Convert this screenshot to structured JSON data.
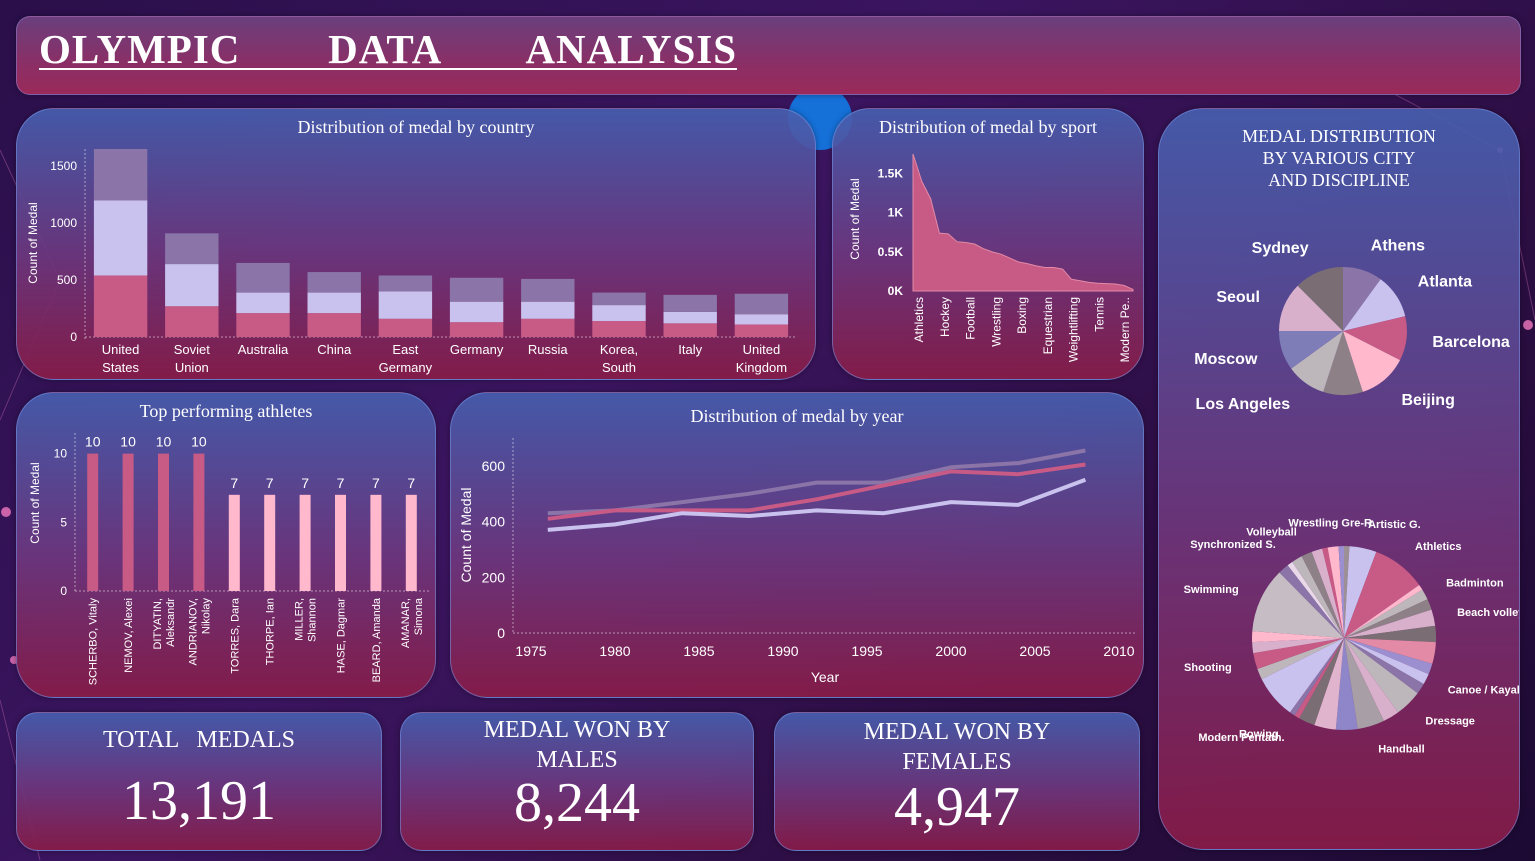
{
  "header": {
    "title": "OLYMPIC   DATA   ANALYSIS"
  },
  "kpis": {
    "total": {
      "label": "TOTAL   MEDALS",
      "value": "13,191"
    },
    "males": {
      "label": "MEDAL WON BY\nMALES",
      "value": "8,244"
    },
    "females": {
      "label": "MEDAL WON BY\nFEMALES",
      "value": "4,947"
    }
  },
  "colors": {
    "light": "#c9c2ee",
    "pink": "#c85a86",
    "mauve": "#8a74a8",
    "bright_pink": "#ffb8cc",
    "grey": "#bdb7bc"
  },
  "chart_data": [
    {
      "id": "country",
      "type": "bar",
      "stacked": true,
      "title": "Distribution of medal by country",
      "ylabel": "Count of Medal",
      "ylim": [
        0,
        1650
      ],
      "yticks": [
        0,
        500,
        1000,
        1500
      ],
      "ytick_labels": [
        "0",
        "500",
        "1000",
        "1500"
      ],
      "categories": [
        "United\nStates",
        "Soviet\nUnion",
        "Australia",
        "China",
        "East\nGermany",
        "Germany",
        "Russia",
        "Korea,\nSouth",
        "Italy",
        "United\nKingdom"
      ],
      "series": [
        {
          "color": "#c85a86",
          "values": [
            540,
            270,
            210,
            210,
            160,
            130,
            160,
            140,
            120,
            110
          ]
        },
        {
          "color": "#c9c2ee",
          "values": [
            660,
            370,
            180,
            180,
            240,
            180,
            150,
            140,
            100,
            90
          ]
        },
        {
          "color": "#8a74a8",
          "values": [
            450,
            270,
            260,
            180,
            140,
            210,
            200,
            110,
            150,
            180
          ]
        }
      ]
    },
    {
      "id": "sport",
      "type": "area",
      "title": "Distribution of medal by sport",
      "ylabel": "Count of Medal",
      "ylim": [
        0,
        1750
      ],
      "yticks": [
        0,
        500,
        1000,
        1500
      ],
      "ytick_labels": [
        "0K",
        "0.5K",
        "1K",
        "1.5K"
      ],
      "labeled_categories": [
        "Athletics",
        "Hockey",
        "Football",
        "Wrestling",
        "Boxing",
        "Equestrian",
        "Weightlifting",
        "Tennis",
        "Modern Pe.."
      ],
      "values": [
        1750,
        1400,
        1180,
        740,
        730,
        630,
        620,
        600,
        540,
        500,
        470,
        420,
        370,
        350,
        320,
        300,
        300,
        280,
        150,
        130,
        110,
        100,
        95,
        90,
        70,
        20
      ]
    },
    {
      "id": "athletes",
      "type": "bar",
      "title": "Top performing athletes",
      "ylabel": "Count of Medal",
      "ylim": [
        0,
        11.5
      ],
      "yticks": [
        0,
        5,
        10
      ],
      "ytick_labels": [
        "0",
        "5",
        "10"
      ],
      "categories": [
        "SCHERBO, Vitaly",
        "NEMOV, Alexei",
        "DITYATIN,\nAleksandr",
        "ANDRIANOV,\nNikolay",
        "TORRES, Dara",
        "THORPE, Ian",
        "MILLER,\nShannon",
        "HASE, Dagmar",
        "BEARD, Amanda",
        "AMANAR,\nSimona"
      ],
      "values": [
        10,
        10,
        10,
        10,
        7,
        7,
        7,
        7,
        7,
        7
      ],
      "value_labels": [
        "10",
        "10",
        "10",
        "10",
        "7",
        "7",
        "7",
        "7",
        "7",
        "7"
      ],
      "colors": [
        "#c85a86",
        "#c85a86",
        "#c85a86",
        "#c85a86",
        "#ffb8cc",
        "#ffb8cc",
        "#ffb8cc",
        "#ffb8cc",
        "#ffb8cc",
        "#ffb8cc"
      ]
    },
    {
      "id": "year",
      "type": "line",
      "title": "Distribution of medal by year",
      "xlabel": "Year",
      "ylabel": "Count of Medal",
      "xlim": [
        1975,
        2010
      ],
      "ylim": [
        0,
        700
      ],
      "xticks": [
        1975,
        1980,
        1985,
        1990,
        1995,
        2000,
        2005,
        2010
      ],
      "xtick_labels": [
        "1975",
        "1980",
        "1985",
        "1990",
        "1995",
        "2000",
        "2005",
        "2010"
      ],
      "yticks": [
        0,
        200,
        400,
        600
      ],
      "ytick_labels": [
        "0",
        "200",
        "400",
        "600"
      ],
      "x": [
        1976,
        1980,
        1984,
        1988,
        1992,
        1996,
        2000,
        2004,
        2008
      ],
      "series": [
        {
          "color": "#8a74a8",
          "values": [
            430,
            440,
            470,
            500,
            540,
            540,
            595,
            610,
            655
          ]
        },
        {
          "color": "#c85a86",
          "values": [
            410,
            440,
            440,
            440,
            480,
            530,
            580,
            570,
            605
          ]
        },
        {
          "color": "#c9c2ee",
          "values": [
            370,
            390,
            430,
            420,
            440,
            430,
            470,
            460,
            550
          ]
        }
      ]
    },
    {
      "id": "city",
      "type": "pie",
      "title": "MEDAL DISTRIBUTION\nBY VARIOUS CITY\nAND  DISCIPLINE",
      "slices": [
        {
          "label": "Athens",
          "value": 8,
          "color": "#8a74a8"
        },
        {
          "label": "Atlanta",
          "value": 9,
          "color": "#c9c2ee"
        },
        {
          "label": "Barcelona",
          "value": 9,
          "color": "#c85a86"
        },
        {
          "label": "Beijing",
          "value": 10,
          "color": "#ffb8cc"
        },
        {
          "label": "",
          "value": 8,
          "color": "#8e8087"
        },
        {
          "label": "Los Angeles",
          "value": 8,
          "color": "#bdb7bc"
        },
        {
          "label": "Moscow",
          "value": 8,
          "color": "#7f7db8"
        },
        {
          "label": "Seoul",
          "value": 10,
          "color": "#d8b0cb"
        },
        {
          "label": "Sydney",
          "value": 10,
          "color": "#7a6e74"
        }
      ]
    },
    {
      "id": "discipline",
      "type": "pie",
      "slices": [
        {
          "label": "",
          "value": 1,
          "color": "#9c9096"
        },
        {
          "label": "Artistic G.",
          "value": 5,
          "color": "#c9c2ee"
        },
        {
          "label": "Athletics",
          "value": 10,
          "color": "#c85a86"
        },
        {
          "label": "",
          "value": 1,
          "color": "#ffb8cc"
        },
        {
          "label": "Badminton",
          "value": 2,
          "color": "#bdb7bc"
        },
        {
          "label": "",
          "value": 2,
          "color": "#8e8087"
        },
        {
          "label": "Beach volley.",
          "value": 3,
          "color": "#d8b0cb"
        },
        {
          "label": "",
          "value": 3,
          "color": "#7a6e74"
        },
        {
          "label": "",
          "value": 4,
          "color": "#e38aa6"
        },
        {
          "label": "",
          "value": 2,
          "color": "#9c8fd0"
        },
        {
          "label": "Canoe / Kayak S",
          "value": 2,
          "color": "#c9c2ee"
        },
        {
          "label": "",
          "value": 2,
          "color": "#8a74a8"
        },
        {
          "label": "Dressage",
          "value": 5,
          "color": "#bdb7bc"
        },
        {
          "label": "",
          "value": 3,
          "color": "#d8b0cb"
        },
        {
          "label": "Handball",
          "value": 5,
          "color": "#a89ea6"
        },
        {
          "label": "",
          "value": 4,
          "color": "#8e86c8"
        },
        {
          "label": "",
          "value": 4,
          "color": "#e0b4cc"
        },
        {
          "label": "",
          "value": 3,
          "color": "#7a6e74"
        },
        {
          "label": "Modern Pentath.",
          "value": 1,
          "color": "#c85a86"
        },
        {
          "label": "Rowing",
          "value": 1,
          "color": "#8a74a8"
        },
        {
          "label": "",
          "value": 8,
          "color": "#c9c2ee"
        },
        {
          "label": "",
          "value": 2,
          "color": "#bdb7bc"
        },
        {
          "label": "Shooting",
          "value": 3,
          "color": "#c85a86"
        },
        {
          "label": "",
          "value": 2,
          "color": "#d8b0cb"
        },
        {
          "label": "",
          "value": 2,
          "color": "#ffb8cc"
        },
        {
          "label": "Swimming",
          "value": 12,
          "color": "#c6bdc4"
        },
        {
          "label": "",
          "value": 2,
          "color": "#8a74a8"
        },
        {
          "label": "Synchronized S.",
          "value": 1,
          "color": "#e8d8e8"
        },
        {
          "label": "",
          "value": 2,
          "color": "#bdb7bc"
        },
        {
          "label": "Volleyball",
          "value": 2,
          "color": "#8e8087"
        },
        {
          "label": "",
          "value": 2,
          "color": "#d8b0cb"
        },
        {
          "label": "",
          "value": 1,
          "color": "#c85a86"
        },
        {
          "label": "Wrestling Gre-R",
          "value": 2,
          "color": "#ffb8cc"
        },
        {
          "label": "",
          "value": 1,
          "color": "#9c8fd0"
        }
      ]
    }
  ]
}
